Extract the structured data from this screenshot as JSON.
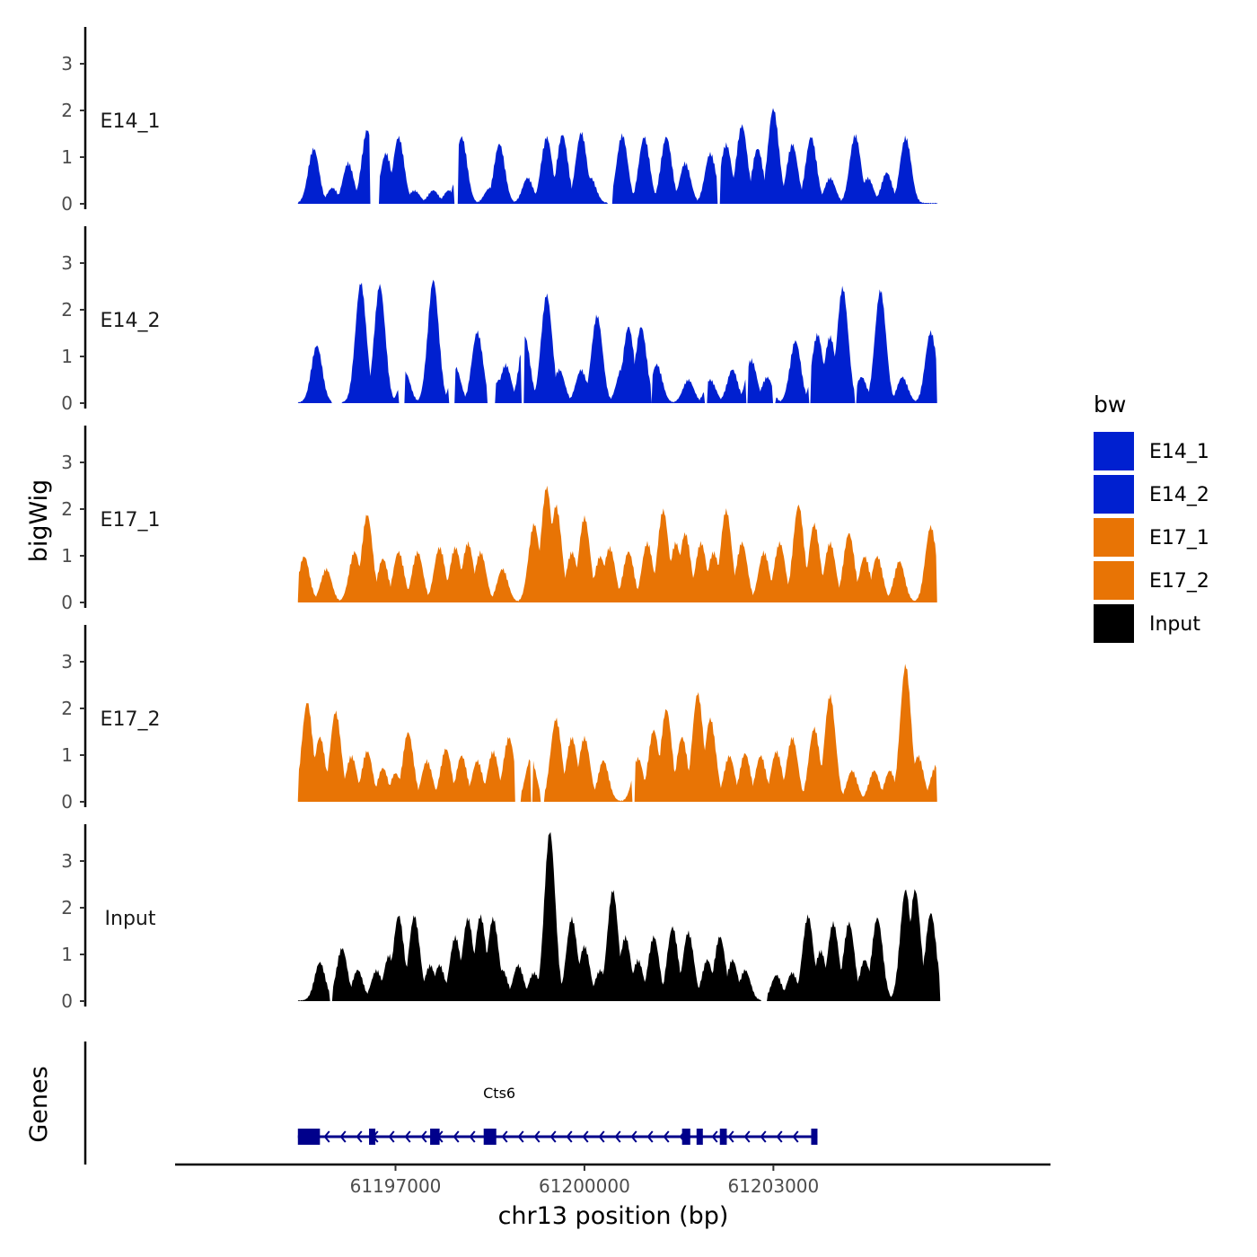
{
  "chart_data": {
    "type": "area",
    "title": "",
    "ylabel": "bigWig",
    "xlabel": "chr13 position (bp)",
    "genes_label": "Genes",
    "ylim": [
      0,
      3.8
    ],
    "y_ticks": [
      "0",
      "1",
      "2",
      "3"
    ],
    "x_range": [
      61193500,
      61207400
    ],
    "x_ticks": [
      {
        "value": 61197000,
        "label": "61197000"
      },
      {
        "value": 61200000,
        "label": "61200000"
      },
      {
        "value": 61203000,
        "label": "61203000"
      }
    ],
    "series": [
      {
        "name": "E14_1",
        "color": "#0020d0",
        "start": 61195450,
        "end": 61205600,
        "peaks": [
          [
            61195700,
            1.1
          ],
          [
            61196000,
            0.3
          ],
          [
            61196250,
            0.8
          ],
          [
            61196550,
            1.5
          ],
          [
            61196850,
            1.0
          ],
          [
            61197050,
            1.35
          ],
          [
            61197300,
            0.25
          ],
          [
            61197600,
            0.25
          ],
          [
            61197850,
            0.25
          ],
          [
            61198050,
            1.35
          ],
          [
            61198500,
            0.3
          ],
          [
            61198650,
            1.2
          ],
          [
            61199100,
            0.5
          ],
          [
            61199400,
            1.35
          ],
          [
            61199650,
            1.4
          ],
          [
            61199950,
            1.45
          ],
          [
            61200100,
            0.5
          ],
          [
            61200600,
            1.4
          ],
          [
            61200950,
            1.35
          ],
          [
            61201300,
            1.35
          ],
          [
            61201600,
            0.8
          ],
          [
            61202000,
            1.0
          ],
          [
            61202250,
            1.2
          ],
          [
            61202500,
            1.6
          ],
          [
            61202750,
            1.1
          ],
          [
            61203000,
            1.95
          ],
          [
            61203300,
            1.2
          ],
          [
            61203600,
            1.35
          ],
          [
            61203900,
            0.5
          ],
          [
            61204300,
            1.4
          ],
          [
            61204500,
            0.5
          ],
          [
            61204800,
            0.6
          ],
          [
            61205100,
            1.35
          ]
        ],
        "gaps": [
          [
            61196600,
            61196750
          ],
          [
            61197930,
            61198000
          ],
          [
            61200370,
            61200450
          ],
          [
            61202100,
            61202150
          ]
        ]
      },
      {
        "name": "E14_2",
        "color": "#0020d0",
        "start": 61195450,
        "end": 61205600,
        "peaks": [
          [
            61195750,
            1.15
          ],
          [
            61196450,
            2.5
          ],
          [
            61196750,
            2.45
          ],
          [
            61197150,
            0.6
          ],
          [
            61197600,
            2.55
          ],
          [
            61197950,
            0.7
          ],
          [
            61198300,
            1.45
          ],
          [
            61198650,
            0.45
          ],
          [
            61198750,
            0.75
          ],
          [
            61199050,
            1.35
          ],
          [
            61199400,
            2.25
          ],
          [
            61199600,
            0.65
          ],
          [
            61199950,
            0.65
          ],
          [
            61200200,
            1.8
          ],
          [
            61200600,
            0.7
          ],
          [
            61200700,
            1.55
          ],
          [
            61200900,
            1.55
          ],
          [
            61201150,
            0.75
          ],
          [
            61201650,
            0.45
          ],
          [
            61202000,
            0.45
          ],
          [
            61202350,
            0.65
          ],
          [
            61202650,
            0.85
          ],
          [
            61202900,
            0.5
          ],
          [
            61203350,
            1.25
          ],
          [
            61203700,
            1.4
          ],
          [
            61203900,
            1.35
          ],
          [
            61204100,
            2.4
          ],
          [
            61204400,
            0.5
          ],
          [
            61204700,
            2.35
          ],
          [
            61205050,
            0.5
          ],
          [
            61205500,
            1.45
          ]
        ],
        "gaps": [
          [
            61195980,
            61196150
          ],
          [
            61197050,
            61197150
          ],
          [
            61197850,
            61197950
          ],
          [
            61198450,
            61198580
          ],
          [
            61199000,
            61199050
          ],
          [
            61201050,
            61201080
          ],
          [
            61201900,
            61201950
          ],
          [
            61202560,
            61202600
          ],
          [
            61202990,
            61203040
          ],
          [
            61203560,
            61203600
          ],
          [
            61204290,
            61204330
          ]
        ]
      },
      {
        "name": "E17_1",
        "color": "#e87405",
        "start": 61195450,
        "end": 61205600,
        "peaks": [
          [
            61195550,
            0.9
          ],
          [
            61195900,
            0.65
          ],
          [
            61196350,
            1.0
          ],
          [
            61196550,
            1.8
          ],
          [
            61196800,
            0.85
          ],
          [
            61197050,
            1.0
          ],
          [
            61197350,
            1.0
          ],
          [
            61197700,
            1.1
          ],
          [
            61197950,
            1.1
          ],
          [
            61198150,
            1.2
          ],
          [
            61198350,
            1.0
          ],
          [
            61198700,
            0.65
          ],
          [
            61199200,
            1.6
          ],
          [
            61199400,
            2.4
          ],
          [
            61199550,
            2.0
          ],
          [
            61199800,
            1.0
          ],
          [
            61200000,
            1.75
          ],
          [
            61200250,
            0.9
          ],
          [
            61200400,
            1.1
          ],
          [
            61200700,
            1.0
          ],
          [
            61201000,
            1.2
          ],
          [
            61201250,
            1.9
          ],
          [
            61201450,
            1.2
          ],
          [
            61201600,
            1.4
          ],
          [
            61201850,
            1.2
          ],
          [
            61202050,
            1.0
          ],
          [
            61202250,
            1.9
          ],
          [
            61202500,
            1.2
          ],
          [
            61202850,
            1.0
          ],
          [
            61203100,
            1.2
          ],
          [
            61203400,
            2.0
          ],
          [
            61203650,
            1.6
          ],
          [
            61203900,
            1.2
          ],
          [
            61204200,
            1.4
          ],
          [
            61204450,
            0.9
          ],
          [
            61204650,
            0.9
          ],
          [
            61205000,
            0.8
          ],
          [
            61205500,
            1.55
          ]
        ],
        "gaps": []
      },
      {
        "name": "E17_2",
        "color": "#e87405",
        "start": 61195450,
        "end": 61205600,
        "peaks": [
          [
            61195600,
            2.05
          ],
          [
            61195800,
            1.3
          ],
          [
            61196050,
            1.85
          ],
          [
            61196300,
            0.9
          ],
          [
            61196550,
            1.0
          ],
          [
            61196800,
            0.65
          ],
          [
            61197000,
            0.55
          ],
          [
            61197200,
            1.4
          ],
          [
            61197500,
            0.8
          ],
          [
            61197800,
            1.05
          ],
          [
            61198050,
            0.9
          ],
          [
            61198300,
            0.8
          ],
          [
            61198550,
            1.0
          ],
          [
            61198800,
            1.3
          ],
          [
            61199150,
            0.85
          ],
          [
            61199550,
            1.7
          ],
          [
            61199800,
            1.3
          ],
          [
            61200000,
            1.3
          ],
          [
            61200300,
            0.8
          ],
          [
            61200850,
            0.85
          ],
          [
            61201100,
            1.45
          ],
          [
            61201300,
            1.9
          ],
          [
            61201550,
            1.3
          ],
          [
            61201800,
            2.25
          ],
          [
            61202000,
            1.7
          ],
          [
            61202300,
            0.9
          ],
          [
            61202550,
            0.95
          ],
          [
            61202800,
            0.9
          ],
          [
            61203050,
            1.0
          ],
          [
            61203300,
            1.3
          ],
          [
            61203650,
            1.5
          ],
          [
            61203900,
            2.2
          ],
          [
            61204250,
            0.6
          ],
          [
            61204600,
            0.6
          ],
          [
            61204850,
            0.6
          ],
          [
            61205100,
            2.85
          ],
          [
            61205300,
            0.9
          ],
          [
            61205580,
            0.7
          ]
        ],
        "gaps": [
          [
            61198900,
            61199000
          ],
          [
            61199150,
            61199180
          ],
          [
            61199300,
            61199360
          ],
          [
            61200750,
            61200800
          ]
        ]
      },
      {
        "name": "Input",
        "color": "#000000",
        "start": 61195450,
        "end": 61205650,
        "peaks": [
          [
            61195800,
            0.75
          ],
          [
            61196150,
            1.05
          ],
          [
            61196400,
            0.6
          ],
          [
            61196700,
            0.6
          ],
          [
            61196900,
            0.9
          ],
          [
            61197050,
            1.75
          ],
          [
            61197300,
            1.75
          ],
          [
            61197550,
            0.7
          ],
          [
            61197700,
            0.7
          ],
          [
            61197950,
            1.3
          ],
          [
            61198150,
            1.7
          ],
          [
            61198350,
            1.75
          ],
          [
            61198550,
            1.7
          ],
          [
            61198700,
            0.6
          ],
          [
            61198950,
            0.7
          ],
          [
            61199200,
            0.55
          ],
          [
            61199450,
            3.55
          ],
          [
            61199800,
            1.7
          ],
          [
            61200000,
            1.1
          ],
          [
            61200250,
            0.6
          ],
          [
            61200450,
            2.3
          ],
          [
            61200650,
            1.3
          ],
          [
            61200850,
            0.8
          ],
          [
            61201100,
            1.3
          ],
          [
            61201400,
            1.5
          ],
          [
            61201650,
            1.4
          ],
          [
            61201950,
            0.8
          ],
          [
            61202150,
            1.3
          ],
          [
            61202350,
            0.8
          ],
          [
            61202550,
            0.6
          ],
          [
            61203050,
            0.5
          ],
          [
            61203300,
            0.55
          ],
          [
            61203550,
            1.75
          ],
          [
            61203750,
            1.0
          ],
          [
            61203950,
            1.6
          ],
          [
            61204200,
            1.6
          ],
          [
            61204450,
            0.8
          ],
          [
            61204650,
            1.7
          ],
          [
            61205100,
            2.3
          ],
          [
            61205250,
            2.3
          ],
          [
            61205500,
            1.8
          ]
        ],
        "gaps": [
          [
            61195950,
            61196000
          ],
          [
            61202800,
            61202900
          ]
        ]
      }
    ],
    "genes": [
      {
        "name": "Cts6",
        "start": 61195450,
        "end": 61203700,
        "strand": "-",
        "exons": [
          [
            61195450,
            61195800
          ],
          [
            61196580,
            61196680
          ],
          [
            61197550,
            61197700
          ],
          [
            61198400,
            61198600
          ],
          [
            61201550,
            61201680
          ],
          [
            61201780,
            61201880
          ],
          [
            61202150,
            61202260
          ],
          [
            61203600,
            61203700
          ]
        ]
      }
    ]
  },
  "legend": {
    "title": "bw",
    "items": [
      {
        "label": "E14_1",
        "color": "#0020d0"
      },
      {
        "label": "E14_2",
        "color": "#0020d0"
      },
      {
        "label": "E17_1",
        "color": "#e87405"
      },
      {
        "label": "E17_2",
        "color": "#e87405"
      },
      {
        "label": "Input",
        "color": "#000000"
      }
    ]
  }
}
